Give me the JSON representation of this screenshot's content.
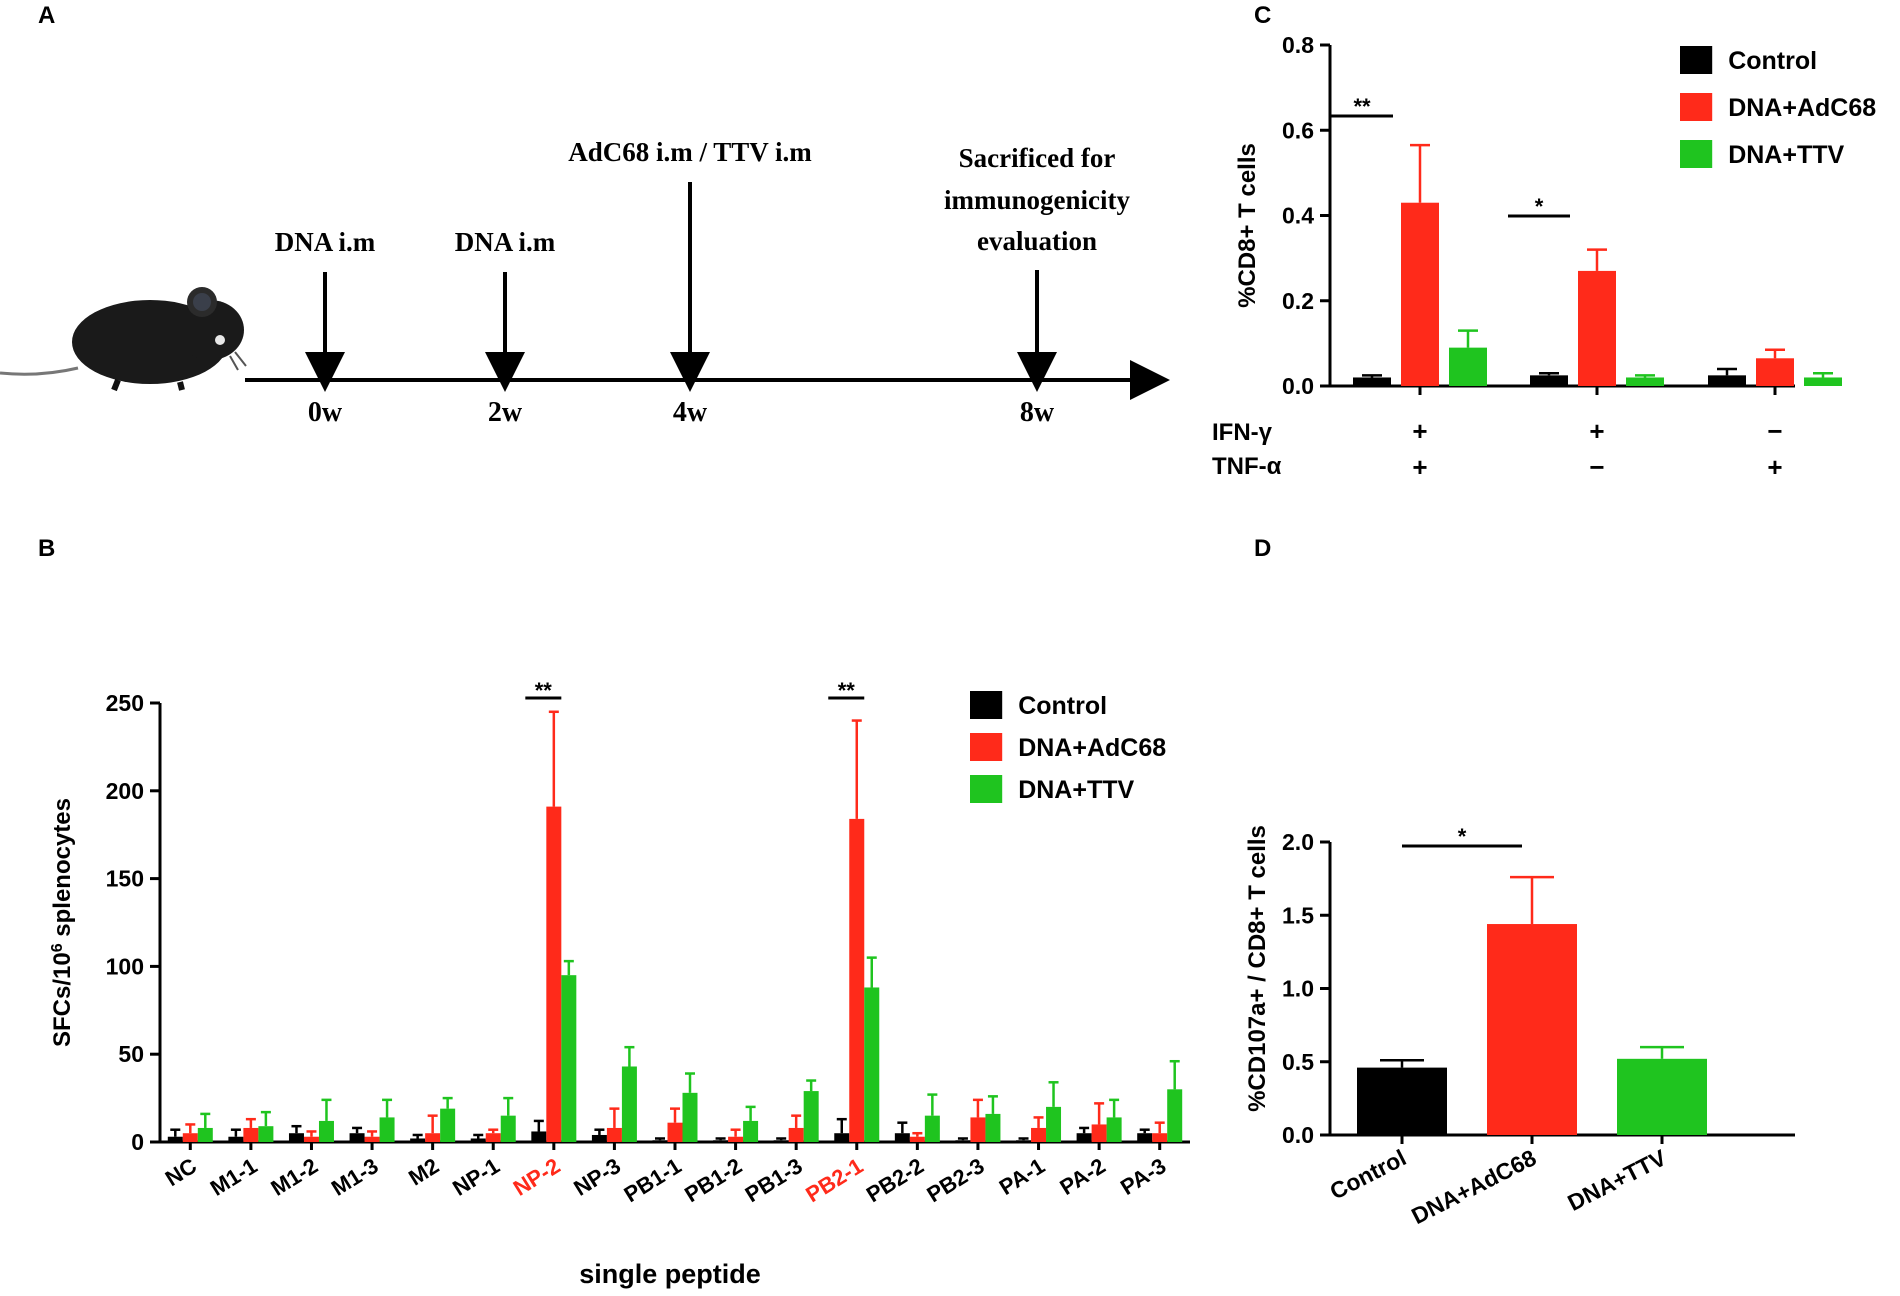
{
  "panels": {
    "A": {
      "letter": "A",
      "events": [
        {
          "label": "DNA i.m",
          "week": "0w"
        },
        {
          "label": "DNA i.m",
          "week": "2w"
        },
        {
          "label": "AdC68 i.m / TTV i.m",
          "week": "4w"
        },
        {
          "label_lines": [
            "Sacrificed for",
            "immunogenicity",
            "evaluation"
          ],
          "week": "8w"
        }
      ]
    },
    "B": {
      "letter": "B"
    },
    "C": {
      "letter": "C"
    },
    "D": {
      "letter": "D"
    }
  },
  "legend": {
    "items": [
      {
        "name": "Control",
        "color": "#000000"
      },
      {
        "name": "DNA+AdC68",
        "color": "#ff2a1a"
      },
      {
        "name": "DNA+TTV",
        "color": "#1fc41f"
      }
    ]
  },
  "chart_data": [
    {
      "id": "B",
      "type": "bar",
      "title": "",
      "xlabel": "single peptide",
      "ylabel": "SFCs/10^6 splenocytes",
      "ylim": [
        0,
        250
      ],
      "yticks": [
        0,
        50,
        100,
        150,
        200,
        250
      ],
      "categories": [
        "NC",
        "M1-1",
        "M1-2",
        "M1-3",
        "M2",
        "NP-1",
        "NP-2",
        "NP-3",
        "PB1-1",
        "PB1-2",
        "PB1-3",
        "PB2-1",
        "PB2-2",
        "PB2-3",
        "PA-1",
        "PA-2",
        "PA-3"
      ],
      "highlighted_categories": [
        "NP-2",
        "PB2-1"
      ],
      "series": [
        {
          "name": "Control",
          "values": [
            3,
            3,
            5,
            5,
            2,
            2,
            6,
            4,
            1,
            1,
            1,
            5,
            5,
            1,
            1,
            5,
            5
          ],
          "errors": [
            4,
            4,
            4,
            3,
            2,
            2,
            6,
            3,
            1,
            1,
            1,
            8,
            6,
            1,
            1,
            3,
            2
          ]
        },
        {
          "name": "DNA+AdC68",
          "values": [
            5,
            8,
            3,
            3,
            5,
            5,
            191,
            8,
            11,
            3,
            8,
            184,
            3,
            14,
            8,
            10,
            5
          ],
          "errors": [
            5,
            5,
            3,
            3,
            10,
            2,
            54,
            11,
            8,
            4,
            7,
            56,
            2,
            10,
            6,
            12,
            6
          ]
        },
        {
          "name": "DNA+TTV",
          "values": [
            8,
            9,
            12,
            14,
            19,
            15,
            95,
            43,
            28,
            12,
            29,
            88,
            15,
            16,
            20,
            14,
            30
          ],
          "errors": [
            8,
            8,
            12,
            10,
            6,
            10,
            8,
            11,
            11,
            8,
            6,
            17,
            12,
            10,
            14,
            10,
            16
          ]
        }
      ],
      "significance": [
        {
          "category": "NP-2",
          "label": "**"
        },
        {
          "category": "PB2-1",
          "label": "**"
        }
      ]
    },
    {
      "id": "C",
      "type": "bar",
      "ylabel": "%CD8+ T cells",
      "ylim": [
        0,
        0.8
      ],
      "yticks": [
        "0.0",
        "0.2",
        "0.4",
        "0.6",
        "0.8"
      ],
      "row_labels": [
        "IFN-γ",
        "TNF-α"
      ],
      "categories": [
        {
          "ifn": "+",
          "tnf": "+"
        },
        {
          "ifn": "+",
          "tnf": "−"
        },
        {
          "ifn": "−",
          "tnf": "+"
        }
      ],
      "series": [
        {
          "name": "Control",
          "values": [
            0.02,
            0.025,
            0.025
          ],
          "errors": [
            0.005,
            0.005,
            0.015
          ]
        },
        {
          "name": "DNA+AdC68",
          "values": [
            0.43,
            0.27,
            0.065
          ],
          "errors": [
            0.135,
            0.05,
            0.02
          ]
        },
        {
          "name": "DNA+TTV",
          "values": [
            0.09,
            0.02,
            0.02
          ],
          "errors": [
            0.04,
            0.005,
            0.01
          ]
        }
      ],
      "significance": [
        {
          "group": 0,
          "label": "**"
        },
        {
          "group": 1,
          "label": "*"
        }
      ]
    },
    {
      "id": "D",
      "type": "bar",
      "ylabel": "%CD107a+ / CD8+ T cells",
      "ylim": [
        0,
        2.0
      ],
      "yticks": [
        "0.0",
        "0.5",
        "1.0",
        "1.5",
        "2.0"
      ],
      "categories": [
        "Control",
        "DNA+AdC68",
        "DNA+TTV"
      ],
      "values": [
        0.46,
        1.44,
        0.52
      ],
      "errors": [
        0.05,
        0.32,
        0.08
      ],
      "significance": [
        {
          "from": 0,
          "to": 1,
          "label": "*"
        }
      ]
    }
  ]
}
